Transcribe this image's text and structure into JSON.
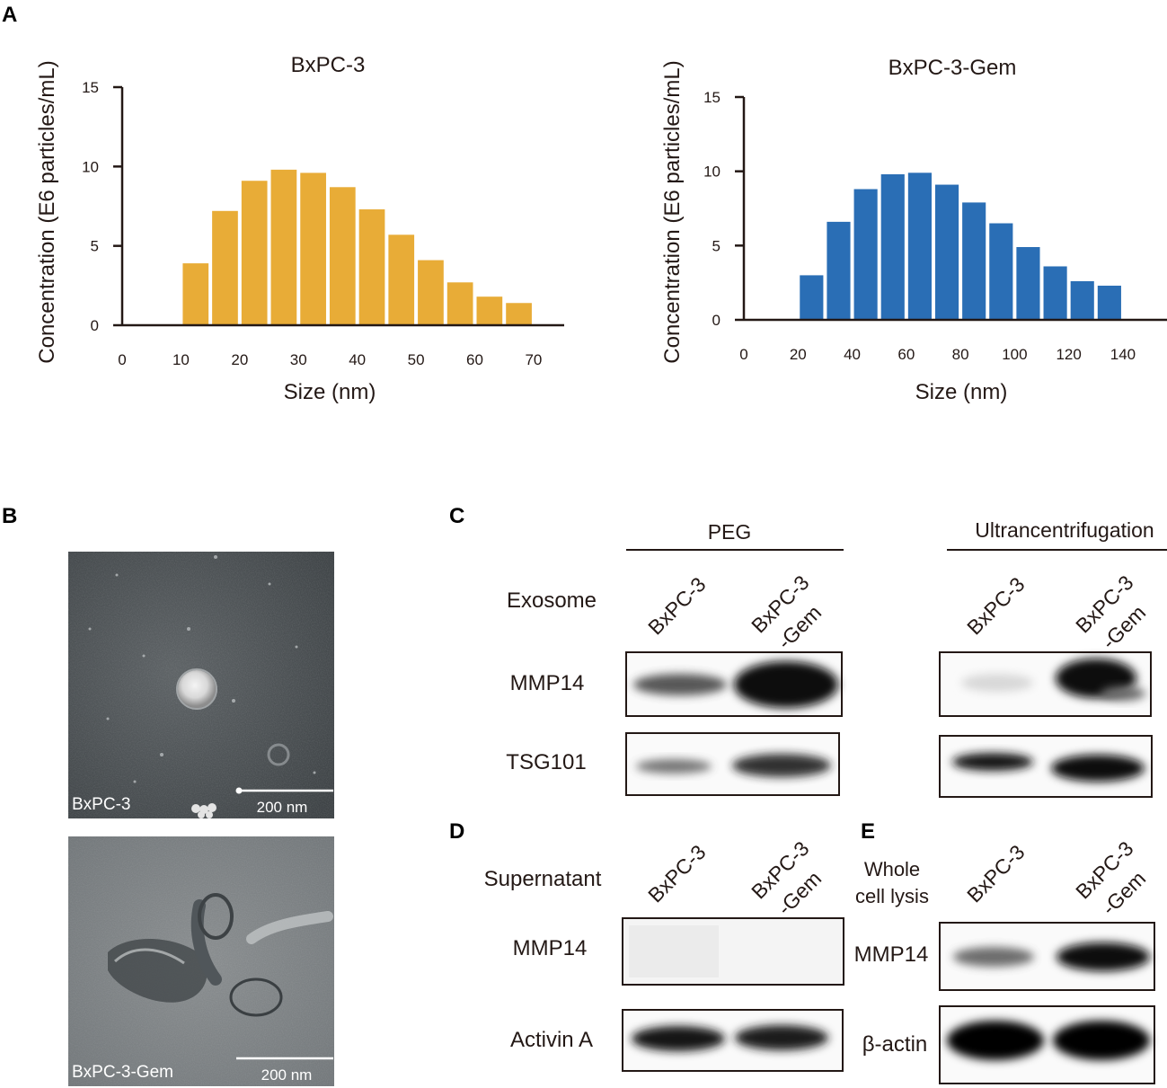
{
  "panels": {
    "a": "A",
    "b": "B",
    "c": "C",
    "d": "D",
    "e": "E"
  },
  "chart_data": [
    {
      "type": "bar",
      "title": "BxPC-3",
      "xlabel": "Size (nm)",
      "ylabel": "Concentration (E6 particles/mL)",
      "x_ticks": [
        0,
        10,
        20,
        30,
        40,
        50,
        60,
        70
      ],
      "y_ticks": [
        0,
        5,
        10,
        15
      ],
      "xlim": [
        0,
        72
      ],
      "ylim": [
        0,
        15
      ],
      "bin_width": 5,
      "bins": [
        12.5,
        17.5,
        22.5,
        27.5,
        32.5,
        37.5,
        42.5,
        47.5,
        52.5,
        57.5,
        62.5,
        67.5
      ],
      "values": [
        3.9,
        7.2,
        9.1,
        9.8,
        9.6,
        8.7,
        7.3,
        5.7,
        4.1,
        2.7,
        1.8,
        1.4
      ],
      "color": "#E8AC37",
      "grid": false
    },
    {
      "type": "bar",
      "title": "BxPC-3-Gem",
      "xlabel": "Size (nm)",
      "ylabel": "Concentration (E6 particles/mL)",
      "x_ticks": [
        0,
        20,
        40,
        60,
        80,
        100,
        120,
        140
      ],
      "y_ticks": [
        0,
        5,
        10,
        15
      ],
      "xlim": [
        0,
        144
      ],
      "ylim": [
        0,
        15
      ],
      "bin_width": 10,
      "bins": [
        25,
        35,
        45,
        55,
        65,
        75,
        85,
        95,
        105,
        115,
        125,
        135
      ],
      "values": [
        3.0,
        6.6,
        8.8,
        9.8,
        9.9,
        9.1,
        7.9,
        6.5,
        4.9,
        3.6,
        2.6,
        2.3
      ],
      "color": "#2A6EB5",
      "grid": false
    }
  ],
  "em_images": [
    {
      "caption": "BxPC-3",
      "scale": "200 nm"
    },
    {
      "caption": "BxPC-3-Gem",
      "scale": "200 nm"
    }
  ],
  "panel_c": {
    "group_left": "PEG",
    "group_right": "Ultrancentrifugation",
    "row_title": "Exosome",
    "lanes": [
      "BxPC-3",
      "BxPC-3",
      "-Gem"
    ],
    "rows": [
      "MMP14",
      "TSG101"
    ]
  },
  "panel_d": {
    "row_title": "Supernatant",
    "lanes": [
      "BxPC-3",
      "BxPC-3",
      "-Gem"
    ],
    "rows": [
      "MMP14",
      "Activin A"
    ]
  },
  "panel_e": {
    "row_title_1": "Whole",
    "row_title_2": "cell lysis",
    "lanes": [
      "BxPC-3",
      "BxPC-3",
      "-Gem"
    ],
    "rows": [
      "MMP14",
      "β-actin"
    ]
  }
}
